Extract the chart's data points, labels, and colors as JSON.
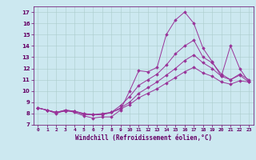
{
  "xlabel": "Windchill (Refroidissement éolien,°C)",
  "ylabel": "",
  "background_color": "#cce8f0",
  "grid_color": "#aacccc",
  "line_color": "#993399",
  "xlim": [
    -0.5,
    23.5
  ],
  "ylim": [
    7,
    17.5
  ],
  "yticks": [
    7,
    8,
    9,
    10,
    11,
    12,
    13,
    14,
    15,
    16,
    17
  ],
  "xticks": [
    0,
    1,
    2,
    3,
    4,
    5,
    6,
    7,
    8,
    9,
    10,
    11,
    12,
    13,
    14,
    15,
    16,
    17,
    18,
    19,
    20,
    21,
    22,
    23
  ],
  "series": [
    [
      8.5,
      8.3,
      8.0,
      8.3,
      8.1,
      7.8,
      7.6,
      7.7,
      7.7,
      8.3,
      10.0,
      11.8,
      11.7,
      12.1,
      15.0,
      16.3,
      17.0,
      16.0,
      13.8,
      12.6,
      11.3,
      14.0,
      12.0,
      10.8
    ],
    [
      8.5,
      8.3,
      8.1,
      8.3,
      8.2,
      8.0,
      7.9,
      8.0,
      8.1,
      8.7,
      9.5,
      10.5,
      11.0,
      11.5,
      12.3,
      13.3,
      14.0,
      14.5,
      13.0,
      12.5,
      11.5,
      11.0,
      11.5,
      11.0
    ],
    [
      8.5,
      8.3,
      8.1,
      8.3,
      8.2,
      8.0,
      7.9,
      7.9,
      8.1,
      8.5,
      9.0,
      9.8,
      10.3,
      10.8,
      11.4,
      12.0,
      12.7,
      13.2,
      12.5,
      12.0,
      11.3,
      11.0,
      11.4,
      10.8
    ],
    [
      8.5,
      8.3,
      8.1,
      8.2,
      8.2,
      7.9,
      7.9,
      7.9,
      8.1,
      8.4,
      8.8,
      9.4,
      9.8,
      10.2,
      10.7,
      11.2,
      11.7,
      12.1,
      11.6,
      11.3,
      10.8,
      10.6,
      10.9,
      10.8
    ]
  ],
  "figsize": [
    3.2,
    2.0
  ],
  "dpi": 100
}
